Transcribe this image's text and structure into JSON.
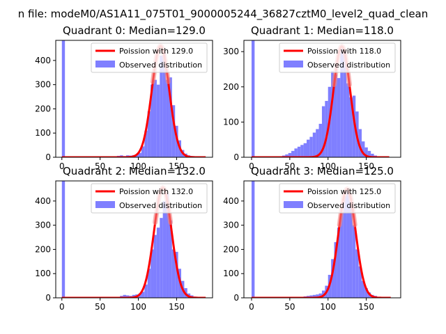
{
  "window": {
    "suptitle": "n file: modeM0/AS1A11_075T01_9000005244_36827cztM0_level2_quad_clean"
  },
  "colors": {
    "hist": "#7f7fff",
    "fit": "#ff0000",
    "fit_highlight": "#f08080"
  },
  "chart_data": [
    {
      "type": "bar",
      "title": "Quadrant 0: Median=129.0",
      "median": 129.0,
      "xlim": [
        -8,
        197
      ],
      "ylim": [
        0,
        483
      ],
      "xticks": [
        0,
        50,
        100,
        150
      ],
      "yticks": [
        0,
        100,
        200,
        300,
        400
      ],
      "xtick_labels": [
        "0",
        "50",
        "100",
        "150"
      ],
      "ytick_labels": [
        "0",
        "100",
        "200",
        "300",
        "400"
      ],
      "bin_width": 4,
      "bars": [
        {
          "x": 0,
          "value": 483
        },
        {
          "x": 72,
          "value": 6
        },
        {
          "x": 76,
          "value": 8
        },
        {
          "x": 80,
          "value": 5
        },
        {
          "x": 84,
          "value": 8
        },
        {
          "x": 88,
          "value": 7
        },
        {
          "x": 92,
          "value": 9
        },
        {
          "x": 96,
          "value": 12
        },
        {
          "x": 100,
          "value": 18
        },
        {
          "x": 104,
          "value": 45
        },
        {
          "x": 108,
          "value": 110
        },
        {
          "x": 112,
          "value": 190
        },
        {
          "x": 116,
          "value": 300
        },
        {
          "x": 120,
          "value": 320
        },
        {
          "x": 124,
          "value": 300
        },
        {
          "x": 128,
          "value": 420
        },
        {
          "x": 132,
          "value": 430
        },
        {
          "x": 136,
          "value": 320
        },
        {
          "x": 140,
          "value": 330
        },
        {
          "x": 144,
          "value": 215
        },
        {
          "x": 148,
          "value": 130
        },
        {
          "x": 152,
          "value": 70
        },
        {
          "x": 156,
          "value": 30
        },
        {
          "x": 160,
          "value": 15
        },
        {
          "x": 164,
          "value": 8
        },
        {
          "x": 168,
          "value": 5
        },
        {
          "x": 172,
          "value": 3
        },
        {
          "x": 176,
          "value": 2
        }
      ],
      "fit": {
        "mean": 129.0,
        "peak": 460,
        "x_start": 0,
        "x_end": 188
      },
      "legend": [
        "Poission with 129.0",
        "Observed distribution"
      ],
      "legend_position": "top-right"
    },
    {
      "type": "bar",
      "title": "Quadrant 1: Median=118.0",
      "median": 118.0,
      "xlim": [
        -10,
        195
      ],
      "ylim": [
        0,
        332
      ],
      "xticks": [
        0,
        50,
        100,
        150
      ],
      "yticks": [
        0,
        100,
        200,
        300
      ],
      "xtick_labels": [
        "0",
        "50",
        "100",
        "150"
      ],
      "ytick_labels": [
        "0",
        "100",
        "200",
        "300"
      ],
      "bin_width": 4,
      "bars": [
        {
          "x": 0,
          "value": 332
        },
        {
          "x": 36,
          "value": 3
        },
        {
          "x": 40,
          "value": 5
        },
        {
          "x": 44,
          "value": 8
        },
        {
          "x": 48,
          "value": 12
        },
        {
          "x": 52,
          "value": 18
        },
        {
          "x": 56,
          "value": 25
        },
        {
          "x": 60,
          "value": 30
        },
        {
          "x": 64,
          "value": 35
        },
        {
          "x": 68,
          "value": 40
        },
        {
          "x": 72,
          "value": 50
        },
        {
          "x": 76,
          "value": 58
        },
        {
          "x": 80,
          "value": 70
        },
        {
          "x": 84,
          "value": 80
        },
        {
          "x": 88,
          "value": 95
        },
        {
          "x": 92,
          "value": 145
        },
        {
          "x": 96,
          "value": 160
        },
        {
          "x": 100,
          "value": 200
        },
        {
          "x": 104,
          "value": 245
        },
        {
          "x": 108,
          "value": 235
        },
        {
          "x": 112,
          "value": 225
        },
        {
          "x": 116,
          "value": 310
        },
        {
          "x": 120,
          "value": 300
        },
        {
          "x": 124,
          "value": 210
        },
        {
          "x": 128,
          "value": 170
        },
        {
          "x": 132,
          "value": 175
        },
        {
          "x": 136,
          "value": 130
        },
        {
          "x": 140,
          "value": 80
        },
        {
          "x": 144,
          "value": 45
        },
        {
          "x": 148,
          "value": 28
        },
        {
          "x": 152,
          "value": 18
        },
        {
          "x": 156,
          "value": 10
        },
        {
          "x": 160,
          "value": 5
        }
      ],
      "fit": {
        "mean": 118.0,
        "peak": 315,
        "x_start": 0,
        "x_end": 180
      },
      "legend": [
        "Poission with 118.0",
        "Observed distribution"
      ],
      "legend_position": "top-right"
    },
    {
      "type": "bar",
      "title": "Quadrant 2: Median=132.0",
      "median": 132.0,
      "xlim": [
        -8,
        197
      ],
      "ylim": [
        0,
        483
      ],
      "xticks": [
        0,
        50,
        100,
        150
      ],
      "yticks": [
        0,
        100,
        200,
        300,
        400
      ],
      "xtick_labels": [
        "0",
        "50",
        "100",
        "150"
      ],
      "ytick_labels": [
        "0",
        "100",
        "200",
        "300",
        "400"
      ],
      "bin_width": 4,
      "bars": [
        {
          "x": 0,
          "value": 483
        },
        {
          "x": 76,
          "value": 8
        },
        {
          "x": 80,
          "value": 12
        },
        {
          "x": 84,
          "value": 10
        },
        {
          "x": 88,
          "value": 8
        },
        {
          "x": 92,
          "value": 12
        },
        {
          "x": 96,
          "value": 14
        },
        {
          "x": 100,
          "value": 18
        },
        {
          "x": 104,
          "value": 25
        },
        {
          "x": 108,
          "value": 55
        },
        {
          "x": 112,
          "value": 120
        },
        {
          "x": 116,
          "value": 200
        },
        {
          "x": 120,
          "value": 260
        },
        {
          "x": 124,
          "value": 290
        },
        {
          "x": 128,
          "value": 330
        },
        {
          "x": 132,
          "value": 400
        },
        {
          "x": 136,
          "value": 430
        },
        {
          "x": 140,
          "value": 320
        },
        {
          "x": 144,
          "value": 200
        },
        {
          "x": 148,
          "value": 190
        },
        {
          "x": 152,
          "value": 120
        },
        {
          "x": 156,
          "value": 70
        },
        {
          "x": 160,
          "value": 40
        },
        {
          "x": 164,
          "value": 18
        },
        {
          "x": 168,
          "value": 10
        },
        {
          "x": 172,
          "value": 5
        },
        {
          "x": 176,
          "value": 3
        }
      ],
      "fit": {
        "mean": 132.0,
        "peak": 455,
        "x_start": 0,
        "x_end": 188
      },
      "legend": [
        "Poission with 132.0",
        "Observed distribution"
      ],
      "legend_position": "top-right"
    },
    {
      "type": "bar",
      "title": "Quadrant 3: Median=125.0",
      "median": 125.0,
      "xlim": [
        -10,
        195
      ],
      "ylim": [
        0,
        483
      ],
      "xticks": [
        0,
        50,
        100,
        150
      ],
      "yticks": [
        0,
        100,
        200,
        300,
        400
      ],
      "xtick_labels": [
        "0",
        "50",
        "100",
        "150"
      ],
      "ytick_labels": [
        "0",
        "100",
        "200",
        "300",
        "400"
      ],
      "bin_width": 4,
      "bars": [
        {
          "x": 0,
          "value": 483
        },
        {
          "x": 68,
          "value": 6
        },
        {
          "x": 72,
          "value": 8
        },
        {
          "x": 76,
          "value": 10
        },
        {
          "x": 80,
          "value": 12
        },
        {
          "x": 84,
          "value": 14
        },
        {
          "x": 88,
          "value": 18
        },
        {
          "x": 92,
          "value": 30
        },
        {
          "x": 96,
          "value": 50
        },
        {
          "x": 100,
          "value": 95
        },
        {
          "x": 104,
          "value": 160
        },
        {
          "x": 108,
          "value": 230
        },
        {
          "x": 112,
          "value": 290
        },
        {
          "x": 116,
          "value": 350
        },
        {
          "x": 120,
          "value": 420
        },
        {
          "x": 124,
          "value": 440
        },
        {
          "x": 128,
          "value": 400
        },
        {
          "x": 132,
          "value": 300
        },
        {
          "x": 136,
          "value": 200
        },
        {
          "x": 140,
          "value": 130
        },
        {
          "x": 144,
          "value": 70
        },
        {
          "x": 148,
          "value": 40
        },
        {
          "x": 152,
          "value": 22
        },
        {
          "x": 156,
          "value": 12
        },
        {
          "x": 160,
          "value": 8
        },
        {
          "x": 164,
          "value": 4
        }
      ],
      "fit": {
        "mean": 125.0,
        "peak": 450,
        "x_start": 0,
        "x_end": 182
      },
      "legend": [
        "Poission with 125.0",
        "Observed distribution"
      ],
      "legend_position": "top-right"
    }
  ]
}
